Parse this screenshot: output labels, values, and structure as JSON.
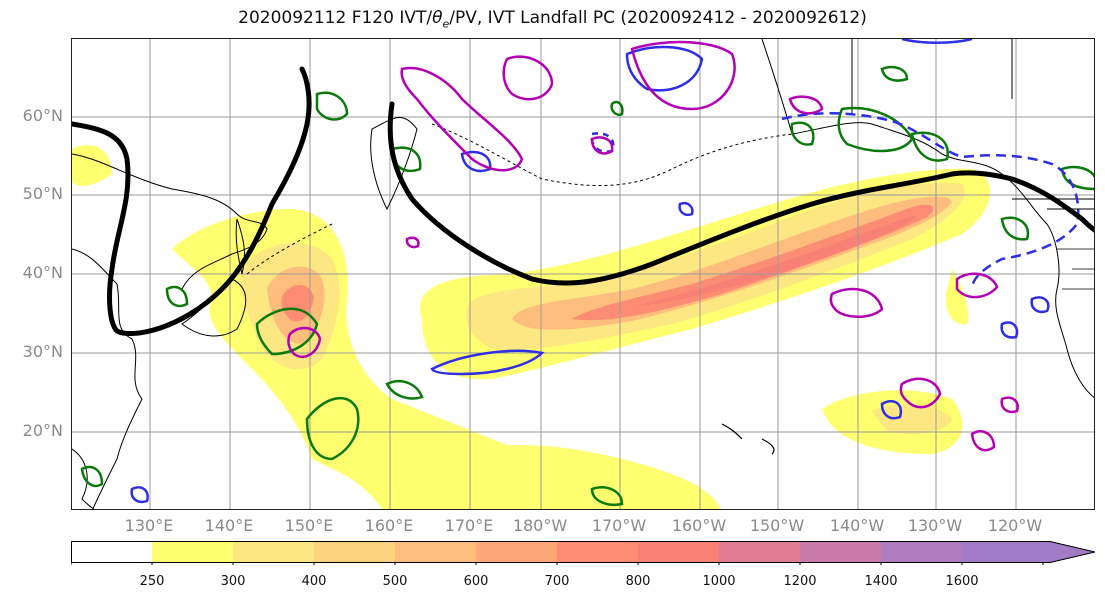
{
  "title_parts": {
    "prefix": "2020092112 F120 IVT/",
    "theta": "θ",
    "sub": "e",
    "suffix": "/PV, IVT Landfall PC (2020092412 - 2020092612)"
  },
  "lat_labels": [
    "60°N",
    "50°N",
    "40°N",
    "30°N",
    "20°N"
  ],
  "lon_labels": [
    "130°E",
    "140°E",
    "150°E",
    "160°E",
    "170°E",
    "180°W",
    "170°W",
    "160°W",
    "150°W",
    "140°W",
    "130°W",
    "120°W"
  ],
  "colorbar": {
    "tick_labels": [
      "250",
      "300",
      "400",
      "500",
      "600",
      "700",
      "800",
      "1000",
      "1200",
      "1400",
      "1600"
    ],
    "colors": [
      "#ffffff",
      "#ffff70",
      "#fde782",
      "#fdd27e",
      "#fdbd7c",
      "#fda678",
      "#fd8c74",
      "#f98074",
      "#e07c92",
      "#c97aa8",
      "#b07cbf",
      "#a27cc8"
    ]
  },
  "legend_colors": {
    "pv": "#2e2ee6",
    "theta": "#b400b4",
    "ivt_pc": "#0a7a0a",
    "landfall": "#000000"
  }
}
